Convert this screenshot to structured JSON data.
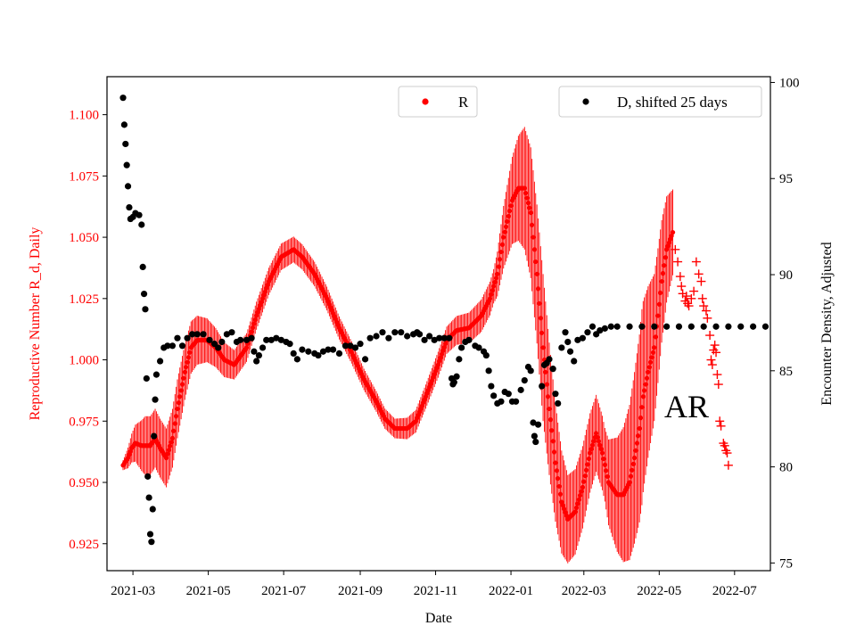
{
  "chart_data": {
    "type": "scatter",
    "xlabel": "Date",
    "ylabel_left": "Reproductive Number R_d, Daily",
    "ylabel_right": "Encounter Density, Adjusted",
    "x_range": [
      "2021-02-08",
      "2022-07-30"
    ],
    "x_ticks": [
      "2021-03",
      "2021-05",
      "2021-07",
      "2021-09",
      "2021-11",
      "2022-01",
      "2022-03",
      "2022-05",
      "2022-07"
    ],
    "y_left_range": [
      0.914,
      1.1155
    ],
    "y_left_ticks": [
      "0.925",
      "0.950",
      "0.975",
      "1.000",
      "1.025",
      "1.050",
      "1.075",
      "1.100"
    ],
    "y_right_range": [
      74.6,
      100.3
    ],
    "y_right_ticks": [
      "75",
      "80",
      "85",
      "90",
      "95",
      "100"
    ],
    "annotation": "AR",
    "legend": {
      "r_label": "R",
      "d_label": "D, shifted 25 days"
    },
    "colors": {
      "r": "#ff0000",
      "d": "#000000",
      "axis": "#000000",
      "left_axis_text": "#ff0000"
    },
    "series": [
      {
        "name": "R",
        "axis": "left",
        "marker": "dot",
        "band_halfwidth": [
          [
            0,
            0.002
          ],
          [
            18,
            0.012
          ],
          [
            45,
            0.012
          ],
          [
            90,
            0.006
          ],
          [
            220,
            0.004
          ],
          [
            300,
            0.007
          ],
          [
            325,
            0.025
          ],
          [
            340,
            0.03
          ],
          [
            360,
            0.018
          ],
          [
            390,
            0.015
          ],
          [
            420,
            0.04
          ],
          [
            430,
            0.03
          ],
          [
            448,
            0.015
          ],
          [
            462,
            0.01
          ]
        ],
        "points": [
          [
            0,
            0.957
          ],
          [
            4,
            0.96
          ],
          [
            7,
            0.964
          ],
          [
            10,
            0.966
          ],
          [
            15,
            0.965
          ],
          [
            22,
            0.965
          ],
          [
            26,
            0.968
          ],
          [
            30,
            0.964
          ],
          [
            35,
            0.96
          ],
          [
            40,
            0.968
          ],
          [
            44,
            0.98
          ],
          [
            50,
            0.995
          ],
          [
            55,
            1.005
          ],
          [
            60,
            1.008
          ],
          [
            68,
            1.008
          ],
          [
            75,
            1.005
          ],
          [
            82,
            1.0
          ],
          [
            90,
            0.998
          ],
          [
            100,
            1.005
          ],
          [
            108,
            1.018
          ],
          [
            118,
            1.032
          ],
          [
            128,
            1.042
          ],
          [
            138,
            1.045
          ],
          [
            145,
            1.042
          ],
          [
            155,
            1.035
          ],
          [
            165,
            1.025
          ],
          [
            175,
            1.013
          ],
          [
            185,
            1.003
          ],
          [
            195,
            0.992
          ],
          [
            205,
            0.983
          ],
          [
            212,
            0.976
          ],
          [
            220,
            0.972
          ],
          [
            230,
            0.972
          ],
          [
            237,
            0.975
          ],
          [
            245,
            0.985
          ],
          [
            255,
            0.998
          ],
          [
            262,
            1.008
          ],
          [
            270,
            1.012
          ],
          [
            280,
            1.013
          ],
          [
            290,
            1.018
          ],
          [
            297,
            1.025
          ],
          [
            303,
            1.035
          ],
          [
            308,
            1.05
          ],
          [
            315,
            1.065
          ],
          [
            320,
            1.07
          ],
          [
            325,
            1.07
          ],
          [
            330,
            1.06
          ],
          [
            335,
            1.035
          ],
          [
            340,
            1.005
          ],
          [
            345,
            0.98
          ],
          [
            350,
            0.958
          ],
          [
            355,
            0.942
          ],
          [
            360,
            0.935
          ],
          [
            366,
            0.938
          ],
          [
            372,
            0.948
          ],
          [
            378,
            0.962
          ],
          [
            383,
            0.97
          ],
          [
            388,
            0.962
          ],
          [
            393,
            0.95
          ],
          [
            400,
            0.945
          ],
          [
            405,
            0.945
          ],
          [
            410,
            0.95
          ],
          [
            414,
            0.96
          ],
          [
            418,
            0.972
          ],
          [
            421,
            0.985
          ],
          [
            425,
            0.995
          ],
          [
            430,
            1.005
          ],
          [
            433,
            1.018
          ],
          [
            436,
            1.032
          ],
          [
            440,
            1.045
          ],
          [
            445,
            1.052
          ]
        ]
      },
      {
        "name": "R AR forecast",
        "axis": "left",
        "marker": "plus",
        "points": [
          [
            447,
            1.045
          ],
          [
            449,
            1.04
          ],
          [
            451,
            1.034
          ],
          [
            452,
            1.03
          ],
          [
            453,
            1.027
          ],
          [
            455,
            1.024
          ],
          [
            456,
            1.026
          ],
          [
            457,
            1.023
          ],
          [
            458,
            1.022
          ],
          [
            460,
            1.025
          ],
          [
            462,
            1.028
          ],
          [
            464,
            1.04
          ],
          [
            466,
            1.035
          ],
          [
            468,
            1.032
          ],
          [
            469,
            1.025
          ],
          [
            470,
            1.022
          ],
          [
            472,
            1.02
          ],
          [
            473,
            1.017
          ],
          [
            475,
            1.01
          ],
          [
            476,
            1.0
          ],
          [
            477,
            0.998
          ],
          [
            478,
            1.004
          ],
          [
            479,
            1.006
          ],
          [
            480,
            1.003
          ],
          [
            481,
            0.994
          ],
          [
            482,
            0.99
          ],
          [
            483,
            0.975
          ],
          [
            484,
            0.973
          ],
          [
            486,
            0.966
          ],
          [
            487,
            0.965
          ],
          [
            488,
            0.963
          ],
          [
            489,
            0.962
          ],
          [
            490,
            0.957
          ]
        ]
      },
      {
        "name": "D, shifted 25 days",
        "axis": "right",
        "marker": "dot",
        "points": [
          [
            0,
            99.2
          ],
          [
            1,
            97.8
          ],
          [
            2,
            96.8
          ],
          [
            3,
            95.7
          ],
          [
            4,
            94.6
          ],
          [
            5,
            93.5
          ],
          [
            6,
            92.9
          ],
          [
            8,
            93.0
          ],
          [
            10,
            93.2
          ],
          [
            13,
            93.1
          ],
          [
            15,
            92.6
          ],
          [
            16,
            90.4
          ],
          [
            17,
            89.0
          ],
          [
            18,
            88.2
          ],
          [
            19,
            84.6
          ],
          [
            20,
            79.5
          ],
          [
            21,
            78.4
          ],
          [
            22,
            76.5
          ],
          [
            23,
            76.1
          ],
          [
            24,
            77.8
          ],
          [
            25,
            81.6
          ],
          [
            26,
            83.5
          ],
          [
            27,
            84.8
          ],
          [
            30,
            85.5
          ],
          [
            33,
            86.2
          ],
          [
            36,
            86.3
          ],
          [
            40,
            86.3
          ],
          [
            44,
            86.7
          ],
          [
            48,
            86.3
          ],
          [
            52,
            86.7
          ],
          [
            56,
            86.9
          ],
          [
            60,
            86.9
          ],
          [
            65,
            86.9
          ],
          [
            70,
            86.6
          ],
          [
            74,
            86.4
          ],
          [
            77,
            86.2
          ],
          [
            80,
            86.5
          ],
          [
            84,
            86.9
          ],
          [
            88,
            87.0
          ],
          [
            92,
            86.5
          ],
          [
            95,
            86.6
          ],
          [
            100,
            86.6
          ],
          [
            104,
            86.7
          ],
          [
            106,
            86.0
          ],
          [
            108,
            85.5
          ],
          [
            110,
            85.8
          ],
          [
            113,
            86.2
          ],
          [
            116,
            86.6
          ],
          [
            120,
            86.6
          ],
          [
            124,
            86.7
          ],
          [
            128,
            86.6
          ],
          [
            132,
            86.5
          ],
          [
            135,
            86.4
          ],
          [
            138,
            85.9
          ],
          [
            141,
            85.6
          ],
          [
            145,
            86.1
          ],
          [
            150,
            86.0
          ],
          [
            155,
            85.9
          ],
          [
            158,
            85.8
          ],
          [
            162,
            86.0
          ],
          [
            166,
            86.1
          ],
          [
            170,
            86.1
          ],
          [
            175,
            85.9
          ],
          [
            180,
            86.3
          ],
          [
            184,
            86.3
          ],
          [
            188,
            86.2
          ],
          [
            192,
            86.4
          ],
          [
            196,
            85.6
          ],
          [
            200,
            86.7
          ],
          [
            205,
            86.8
          ],
          [
            210,
            87.0
          ],
          [
            215,
            86.7
          ],
          [
            220,
            87.0
          ],
          [
            225,
            87.0
          ],
          [
            230,
            86.8
          ],
          [
            235,
            86.9
          ],
          [
            238,
            87.0
          ],
          [
            240,
            86.9
          ],
          [
            244,
            86.6
          ],
          [
            248,
            86.8
          ],
          [
            252,
            86.6
          ],
          [
            256,
            86.7
          ],
          [
            260,
            86.7
          ],
          [
            264,
            86.7
          ],
          [
            266,
            84.6
          ],
          [
            267,
            84.3
          ],
          [
            268,
            84.4
          ],
          [
            270,
            84.7
          ],
          [
            272,
            85.6
          ],
          [
            274,
            86.2
          ],
          [
            277,
            86.5
          ],
          [
            280,
            86.6
          ],
          [
            285,
            86.3
          ],
          [
            288,
            86.2
          ],
          [
            292,
            86.0
          ],
          [
            294,
            85.8
          ],
          [
            296,
            85.0
          ],
          [
            298,
            84.2
          ],
          [
            300,
            83.7
          ],
          [
            303,
            83.3
          ],
          [
            306,
            83.4
          ],
          [
            309,
            83.9
          ],
          [
            312,
            83.8
          ],
          [
            315,
            83.4
          ],
          [
            318,
            83.4
          ],
          [
            322,
            84.0
          ],
          [
            325,
            84.5
          ],
          [
            328,
            85.2
          ],
          [
            330,
            85.0
          ],
          [
            332,
            82.3
          ],
          [
            333,
            81.6
          ],
          [
            334,
            81.3
          ],
          [
            336,
            82.2
          ],
          [
            339,
            84.2
          ],
          [
            341,
            85.3
          ],
          [
            343,
            85.4
          ],
          [
            345,
            85.6
          ],
          [
            348,
            85.1
          ],
          [
            350,
            83.8
          ],
          [
            352,
            83.3
          ],
          [
            355,
            86.2
          ],
          [
            358,
            87.0
          ],
          [
            360,
            86.5
          ],
          [
            362,
            86.0
          ],
          [
            365,
            85.5
          ],
          [
            368,
            86.6
          ],
          [
            372,
            86.7
          ],
          [
            376,
            87.0
          ],
          [
            380,
            87.3
          ],
          [
            383,
            86.9
          ],
          [
            386,
            87.1
          ],
          [
            390,
            87.2
          ],
          [
            395,
            87.3
          ],
          [
            400,
            87.3
          ],
          [
            410,
            87.3
          ],
          [
            420,
            87.3
          ],
          [
            430,
            87.3
          ],
          [
            440,
            87.3
          ],
          [
            450,
            87.3
          ],
          [
            460,
            87.3
          ],
          [
            470,
            87.3
          ],
          [
            480,
            87.3
          ],
          [
            490,
            87.3
          ],
          [
            500,
            87.3
          ],
          [
            510,
            87.3
          ],
          [
            520,
            87.3
          ]
        ]
      }
    ]
  }
}
